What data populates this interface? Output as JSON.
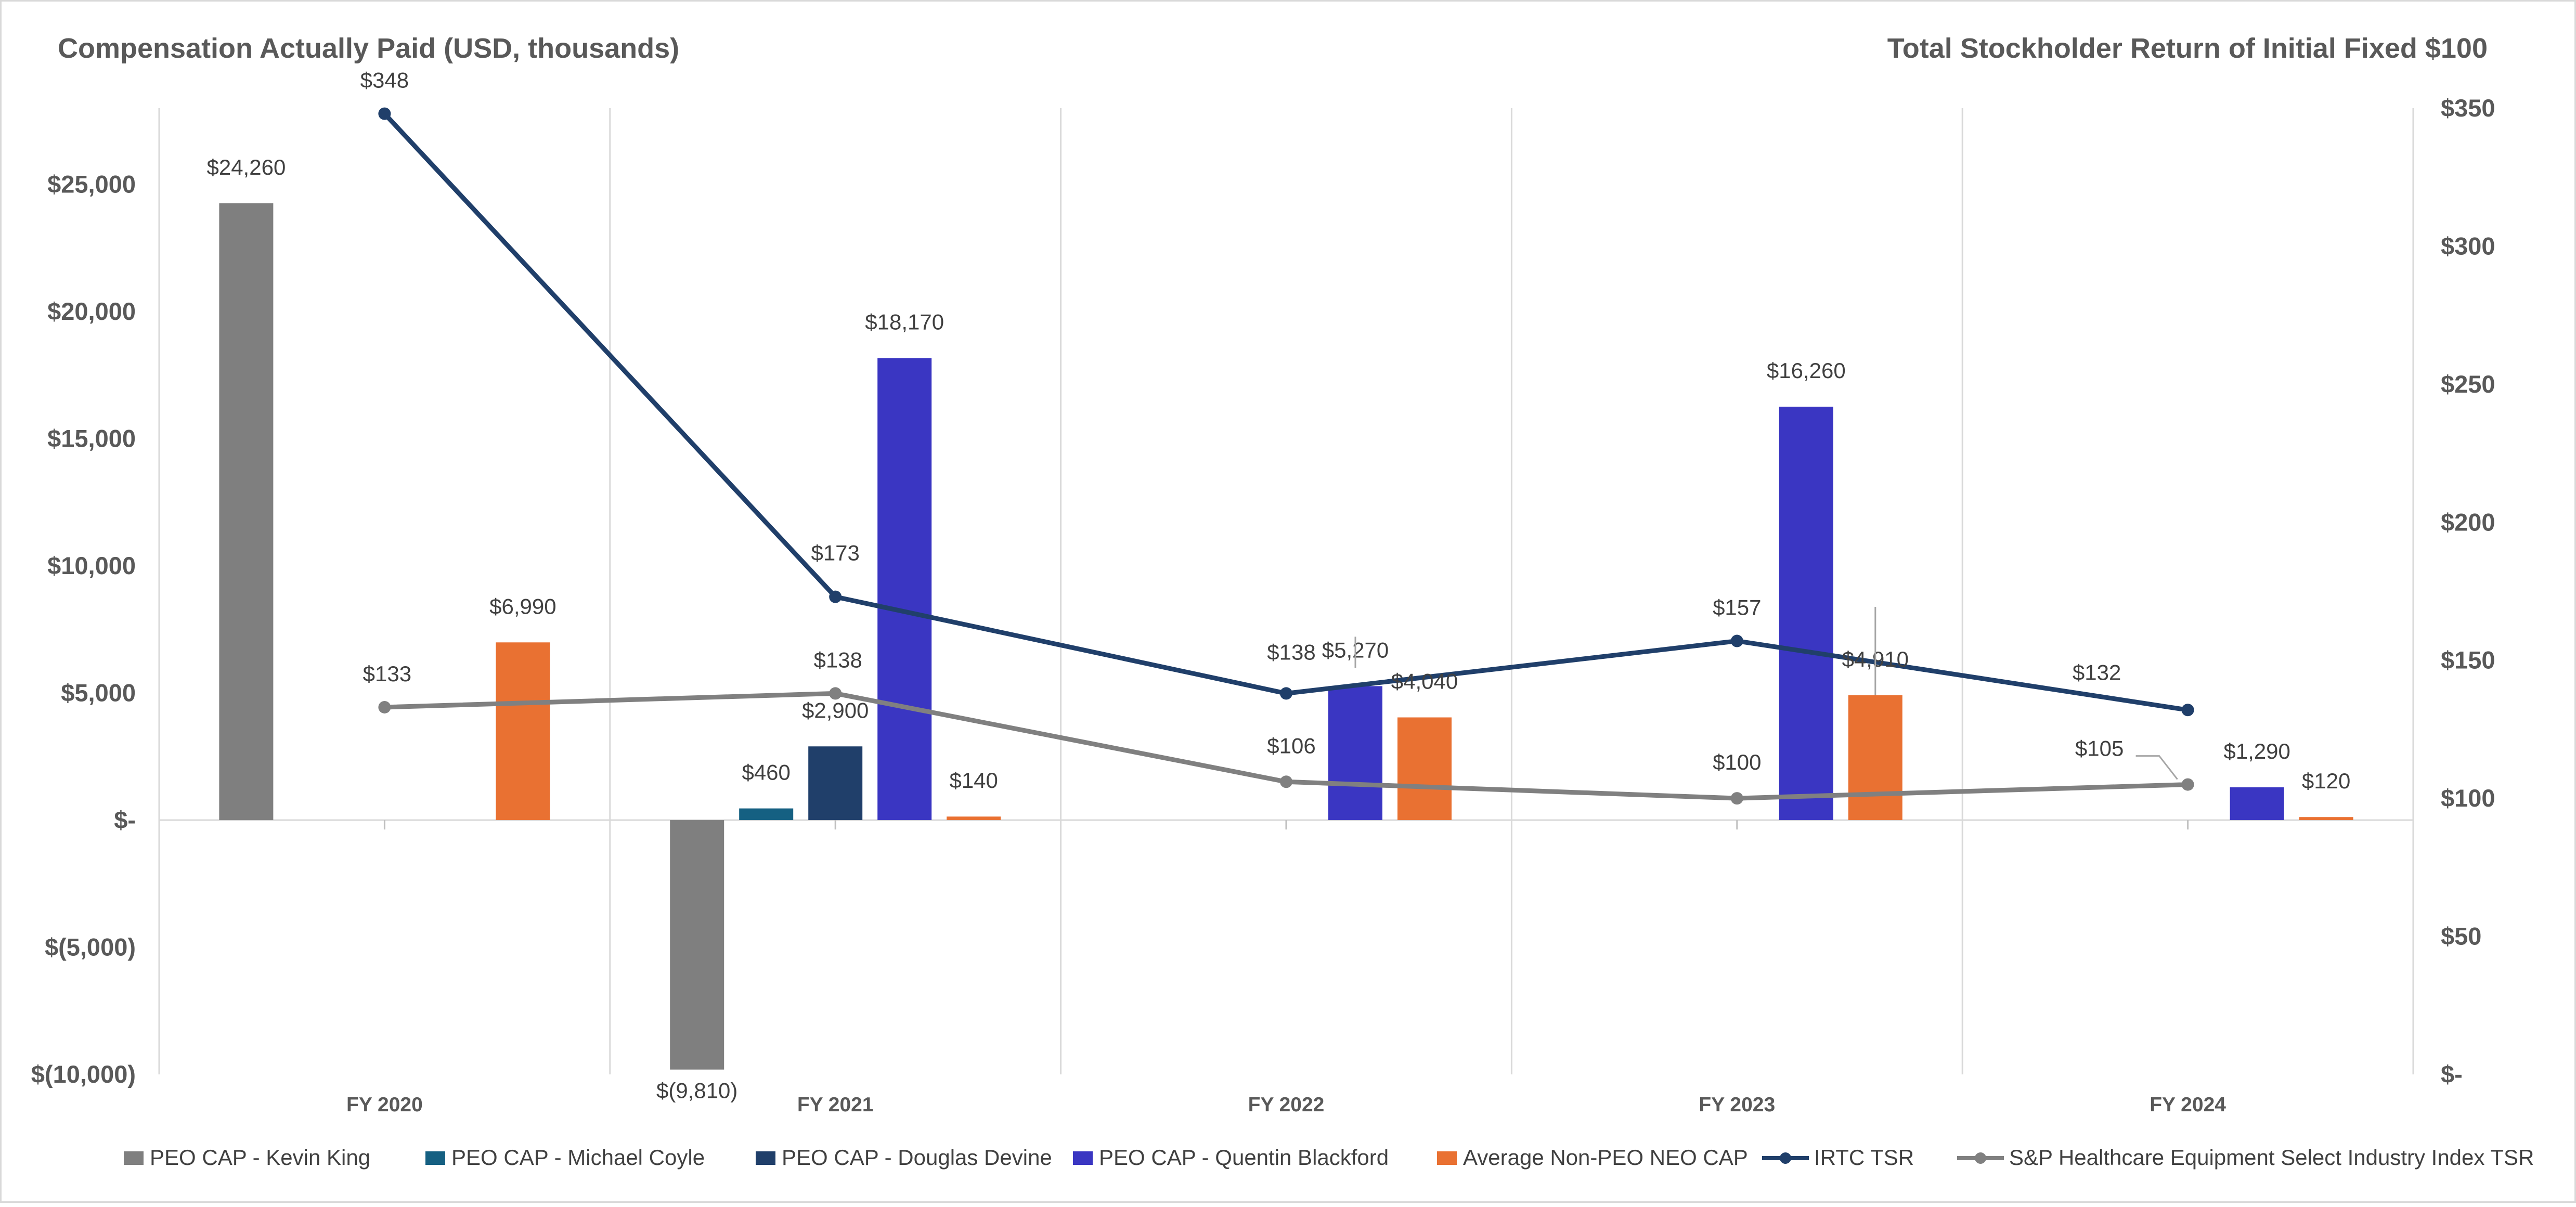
{
  "chart_data": {
    "type": "bar+line",
    "title_left": "Compensation Actually Paid (USD, thousands)",
    "title_right": "Total Stockholder Return of Initial Fixed $100",
    "categories": [
      "FY 2020",
      "FY 2021",
      "FY 2022",
      "FY 2023",
      "FY 2024"
    ],
    "y_left": {
      "min": -10000,
      "max": 28000,
      "ticks": [
        -10000,
        -5000,
        0,
        5000,
        10000,
        15000,
        20000,
        25000
      ],
      "tick_labels": [
        "$(10,000)",
        "$(5,000)",
        "$-",
        "$5,000",
        "$10,000",
        "$15,000",
        "$20,000",
        "$25,000"
      ]
    },
    "y_right": {
      "min": 0,
      "max": 350,
      "ticks": [
        0,
        50,
        100,
        150,
        200,
        250,
        300,
        350
      ],
      "tick_labels": [
        "$-",
        "$50",
        "$100",
        "$150",
        "$200",
        "$250",
        "$300",
        "$350"
      ]
    },
    "bar_series": [
      {
        "name": "PEO CAP - Kevin King",
        "color": "#7f7f7f",
        "values": [
          24260,
          -9810,
          null,
          null,
          null
        ],
        "labels": [
          "$24,260",
          "$(9,810)",
          null,
          null,
          null
        ]
      },
      {
        "name": "PEO CAP - Michael Coyle",
        "color": "#156082",
        "values": [
          null,
          460,
          null,
          null,
          null
        ],
        "labels": [
          null,
          "$460",
          null,
          null,
          null
        ]
      },
      {
        "name": "PEO CAP - Douglas Devine",
        "color": "#203f6a",
        "values": [
          null,
          2900,
          null,
          null,
          null
        ],
        "labels": [
          null,
          "$2,900",
          null,
          null,
          null
        ]
      },
      {
        "name": "PEO CAP - Quentin Blackford",
        "color": "#3a36c2",
        "values": [
          null,
          18170,
          5270,
          16260,
          1290
        ],
        "labels": [
          null,
          "$18,170",
          "$5,270",
          "$16,260",
          "$1,290"
        ]
      },
      {
        "name": "Average Non-PEO NEO CAP",
        "color": "#e97132",
        "values": [
          6990,
          140,
          4040,
          4910,
          120
        ],
        "labels": [
          "$6,990",
          "$140",
          "$4,040",
          "$4,910",
          "$120"
        ]
      }
    ],
    "line_series": [
      {
        "name": "IRTC TSR",
        "color": "#203f6a",
        "values": [
          348,
          173,
          138,
          157,
          132
        ],
        "labels": [
          "$348",
          "$173",
          "$138",
          "$157",
          "$132"
        ]
      },
      {
        "name": "S&P Healthcare Equipment Select Industry Index TSR",
        "color": "#808080",
        "values": [
          133,
          138,
          106,
          100,
          105
        ],
        "labels": [
          "$133",
          "$138",
          "$106",
          "$100",
          "$105"
        ]
      }
    ],
    "legend_position": "bottom"
  }
}
